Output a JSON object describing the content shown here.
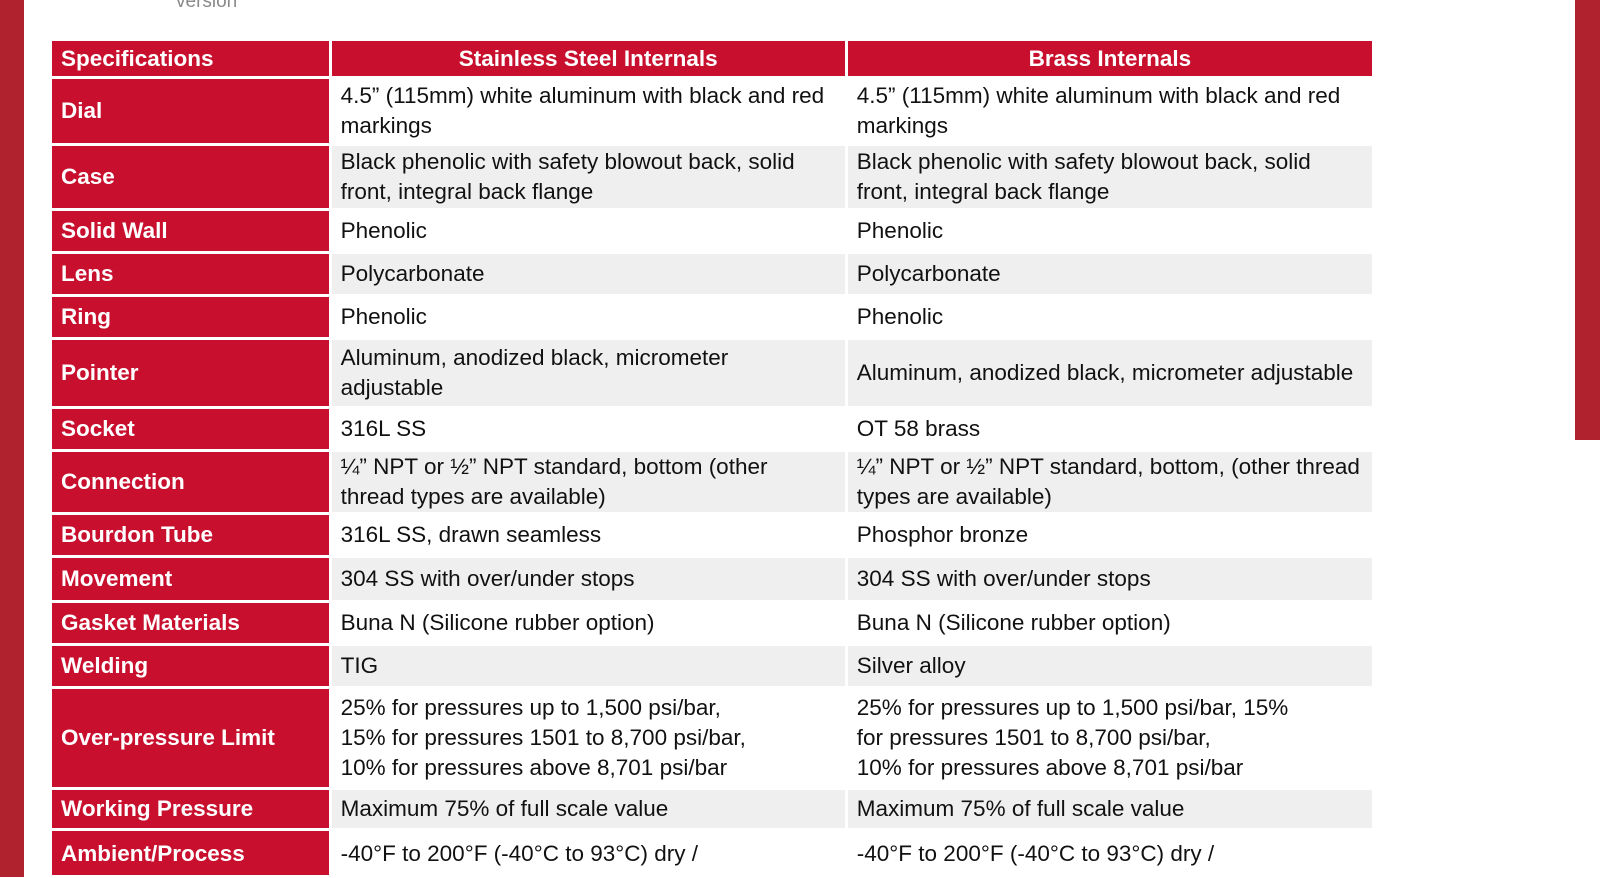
{
  "header_fragment": "version",
  "table": {
    "headers": [
      "Specifications",
      "Stainless Steel Internals",
      "Brass Internals"
    ],
    "rows": [
      {
        "label": "Dial",
        "ss": "4.5” (115mm) white aluminum with black and red markings",
        "brass": "4.5” (115mm) white aluminum with black and red markings"
      },
      {
        "label": "Case",
        "ss": "Black phenolic with safety blowout back, solid front, integral back flange",
        "brass": "Black phenolic with safety blowout back, solid front, integral back flange"
      },
      {
        "label": "Solid Wall",
        "ss": "Phenolic",
        "brass": "Phenolic"
      },
      {
        "label": "Lens",
        "ss": "Polycarbonate",
        "brass": "Polycarbonate"
      },
      {
        "label": "Ring",
        "ss": "Phenolic",
        "brass": "Phenolic"
      },
      {
        "label": "Pointer",
        "ss": "Aluminum, anodized black, micrometer adjustable",
        "brass": "Aluminum, anodized black, micrometer adjustable"
      },
      {
        "label": "Socket",
        "ss": "316L SS",
        "brass": "OT 58 brass"
      },
      {
        "label": "Connection",
        "ss": "¼” NPT or ½” NPT standard, bottom (other thread types are available)",
        "brass": "¼” NPT or ½” NPT standard, bottom, (other thread types are available)"
      },
      {
        "label": "Bourdon Tube",
        "ss": "316L SS, drawn seamless",
        "brass": "Phosphor bronze"
      },
      {
        "label": "Movement",
        "ss": "304 SS with over/under stops",
        "brass": "304 SS with over/under stops"
      },
      {
        "label": "Gasket Materials",
        "ss": "Buna N (Silicone rubber option)",
        "brass": "Buna N (Silicone rubber option)"
      },
      {
        "label": "Welding",
        "ss": "TIG",
        "brass": "Silver alloy"
      },
      {
        "label": "Over-pressure Limit",
        "ss": [
          "25% for pressures up to 1,500 psi/bar,",
          "15% for pressures 1501 to 8,700 psi/bar,",
          "10% for pressures above 8,701 psi/bar"
        ],
        "brass": [
          "25% for pressures up to 1,500 psi/bar, 15%",
          "for pressures 1501 to 8,700 psi/bar,",
          "10% for pressures above 8,701 psi/bar"
        ]
      },
      {
        "label": "Working Pressure",
        "ss": "Maximum 75% of full scale value",
        "brass": "Maximum 75% of full scale value"
      },
      {
        "label": "Ambient/Process",
        "ss": "-40°F to 200°F (-40°C to 93°C) dry /",
        "brass": "-40°F to 200°F (-40°C to 93°C) dry /"
      }
    ]
  },
  "colors": {
    "brand_red": "#c8102e",
    "frame_red": "#b0232e",
    "alt_row": "#efefef"
  }
}
